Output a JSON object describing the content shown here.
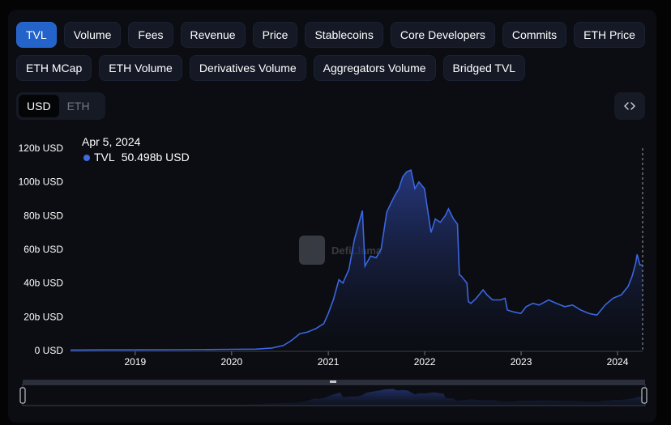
{
  "tabs": [
    {
      "label": "TVL",
      "active": true
    },
    {
      "label": "Volume"
    },
    {
      "label": "Fees"
    },
    {
      "label": "Revenue"
    },
    {
      "label": "Price"
    },
    {
      "label": "Stablecoins"
    },
    {
      "label": "Core Developers"
    },
    {
      "label": "Commits"
    },
    {
      "label": "ETH Price"
    },
    {
      "label": "ETH MCap"
    },
    {
      "label": "ETH Volume"
    },
    {
      "label": "Derivatives Volume"
    },
    {
      "label": "Aggregators Volume"
    },
    {
      "label": "Bridged TVL"
    }
  ],
  "currency": {
    "options": [
      "USD",
      "ETH"
    ],
    "selected": "USD"
  },
  "embed_icon": "code-brackets-icon",
  "tooltip": {
    "date": "Apr 5, 2024",
    "series": "TVL",
    "value": "50.498b USD"
  },
  "watermark": "DefiLlama",
  "colors": {
    "accent": "#2463c9",
    "line": "#3b66e0",
    "background": "#0b0d12"
  },
  "chart_data": {
    "type": "area",
    "series": [
      {
        "name": "TVL"
      }
    ],
    "x_ticks": [
      "2019",
      "2020",
      "2021",
      "2022",
      "2023",
      "2024"
    ],
    "y_ticks": [
      "0 USD",
      "20b USD",
      "40b USD",
      "60b USD",
      "80b USD",
      "100b USD",
      "120b USD"
    ],
    "ylim": [
      0,
      120
    ],
    "xlim": [
      "2018-05",
      "2024-04-05"
    ],
    "points": [
      [
        "2018-05-01",
        0.3
      ],
      [
        "2018-09-01",
        0.4
      ],
      [
        "2019-01-01",
        0.4
      ],
      [
        "2019-07-01",
        0.5
      ],
      [
        "2020-01-01",
        0.7
      ],
      [
        "2020-04-01",
        0.8
      ],
      [
        "2020-06-01",
        1.5
      ],
      [
        "2020-07-15",
        3
      ],
      [
        "2020-08-15",
        6
      ],
      [
        "2020-09-15",
        10
      ],
      [
        "2020-10-15",
        11
      ],
      [
        "2020-11-15",
        13
      ],
      [
        "2020-12-15",
        16
      ],
      [
        "2021-01-01",
        22
      ],
      [
        "2021-01-20",
        30
      ],
      [
        "2021-02-10",
        42
      ],
      [
        "2021-02-25",
        40
      ],
      [
        "2021-03-20",
        48
      ],
      [
        "2021-04-10",
        66
      ],
      [
        "2021-05-10",
        83
      ],
      [
        "2021-05-20",
        50
      ],
      [
        "2021-06-10",
        56
      ],
      [
        "2021-07-01",
        55
      ],
      [
        "2021-07-20",
        60
      ],
      [
        "2021-08-10",
        82
      ],
      [
        "2021-08-25",
        87
      ],
      [
        "2021-09-10",
        92
      ],
      [
        "2021-09-25",
        96
      ],
      [
        "2021-10-10",
        103
      ],
      [
        "2021-10-25",
        106
      ],
      [
        "2021-11-10",
        107
      ],
      [
        "2021-11-25",
        96
      ],
      [
        "2021-12-10",
        100
      ],
      [
        "2021-12-31",
        96
      ],
      [
        "2022-01-15",
        80
      ],
      [
        "2022-01-25",
        70
      ],
      [
        "2022-02-10",
        78
      ],
      [
        "2022-03-01",
        76
      ],
      [
        "2022-03-20",
        80
      ],
      [
        "2022-04-01",
        84
      ],
      [
        "2022-04-20",
        78
      ],
      [
        "2022-05-05",
        75
      ],
      [
        "2022-05-12",
        45
      ],
      [
        "2022-05-20",
        44
      ],
      [
        "2022-06-10",
        40
      ],
      [
        "2022-06-15",
        29
      ],
      [
        "2022-06-25",
        28
      ],
      [
        "2022-07-15",
        31
      ],
      [
        "2022-08-10",
        36
      ],
      [
        "2022-08-25",
        33
      ],
      [
        "2022-09-15",
        30
      ],
      [
        "2022-10-15",
        30
      ],
      [
        "2022-11-01",
        31
      ],
      [
        "2022-11-10",
        24
      ],
      [
        "2022-12-01",
        23
      ],
      [
        "2022-12-31",
        22
      ],
      [
        "2023-01-20",
        26
      ],
      [
        "2023-02-15",
        28
      ],
      [
        "2023-03-10",
        27
      ],
      [
        "2023-04-15",
        30
      ],
      [
        "2023-05-15",
        28
      ],
      [
        "2023-06-15",
        26
      ],
      [
        "2023-07-15",
        27
      ],
      [
        "2023-08-15",
        24
      ],
      [
        "2023-09-15",
        22
      ],
      [
        "2023-10-15",
        21
      ],
      [
        "2023-11-15",
        27
      ],
      [
        "2023-12-15",
        31
      ],
      [
        "2024-01-15",
        33
      ],
      [
        "2024-02-10",
        38
      ],
      [
        "2024-02-25",
        44
      ],
      [
        "2024-03-10",
        52
      ],
      [
        "2024-03-15",
        57
      ],
      [
        "2024-03-25",
        51
      ],
      [
        "2024-04-05",
        50.5
      ]
    ]
  }
}
